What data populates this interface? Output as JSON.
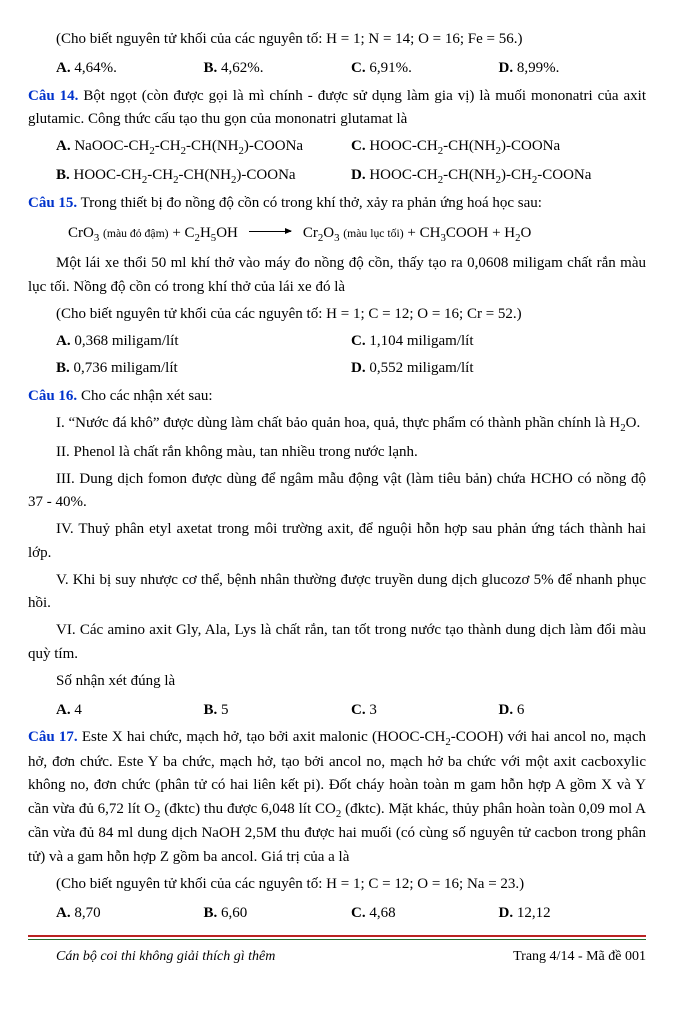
{
  "q13": {
    "note": "(Cho biết nguyên tử khối của các nguyên tố: H = 1; N = 14; O = 16; Fe = 56.)",
    "A": "4,64%.",
    "B": "4,62%.",
    "C": "6,91%.",
    "D": "8,99%."
  },
  "q14": {
    "label": "Câu 14.",
    "text": " Bột ngọt (còn được gọi là mì chính - được sử dụng làm gia vị) là muối mononatri của axit glutamic. Công thức cấu tạo thu gọn của mononatri glutamat là",
    "A": "NaOOC-CH₂-CH₂-CH(NH₂)-COONa",
    "B": "HOOC-CH₂-CH₂-CH(NH₂)-COONa",
    "C": "HOOC-CH₂-CH(NH₂)-COONa",
    "D": "HOOC-CH₂-CH(NH₂)-CH₂-COONa"
  },
  "q15": {
    "label": "Câu 15.",
    "text": " Trong thiết bị đo nồng độ cồn có trong khí thở, xảy ra phản ứng hoá học sau:",
    "eq_left": "CrO₃ ",
    "eq_left_note": "(màu đỏ đậm)",
    "eq_plus1": "  +  C₂H₅OH",
    "eq_right": "Cr₂O₃ ",
    "eq_right_note": "(màu lục tối)",
    "eq_plus2": "  +  CH₃COOH  +  H₂O",
    "body": "Một lái xe thổi 50 ml khí thở vào máy đo nồng độ cồn, thấy tạo ra 0,0608 miligam chất rắn màu lục tối. Nồng độ cồn có trong khí thở của lái xe đó là",
    "note": "(Cho biết nguyên tử khối của các nguyên tố: H = 1; C = 12; O = 16; Cr = 52.)",
    "A": "0,368 miligam/lít",
    "B": "0,736 miligam/lít",
    "C": "1,104 miligam/lít",
    "D": "0,552 miligam/lít"
  },
  "q16": {
    "label": "Câu 16.",
    "text": " Cho các nhận xét sau:",
    "I": "I. “Nước đá khô” được dùng làm chất bảo quản hoa, quả, thực phẩm có thành phần chính là H₂O.",
    "II": "II. Phenol là chất rắn không màu, tan nhiều trong nước lạnh.",
    "III": "III. Dung dịch fomon được dùng để ngâm mẫu động vật (làm tiêu bản) chứa HCHO có nồng độ 37 - 40%.",
    "IV": "IV. Thuỷ phân etyl axetat trong môi trường axit, để nguội hỗn hợp sau phản ứng tách thành hai lớp.",
    "V": "V. Khi bị suy nhược cơ thể, bệnh nhân thường được truyền dung dịch glucozơ 5% để nhanh phục hồi.",
    "VI": "VI. Các amino axit Gly, Ala, Lys là chất rắn, tan tốt trong nước tạo thành dung dịch làm đổi màu quỳ tím.",
    "ask": "Số nhận xét đúng là",
    "A": "4",
    "B": "5",
    "C": "3",
    "D": "6"
  },
  "q17": {
    "label": "Câu 17.",
    "text": " Este X hai chức, mạch hở, tạo bởi axit malonic (HOOC-CH₂-COOH) với hai ancol no, mạch hở, đơn chức. Este Y ba chức, mạch hở, tạo bởi ancol no, mạch hở ba chức với một axit cacboxylic không no, đơn chức (phân tử có hai liên kết pi). Đốt cháy hoàn toàn m gam hỗn hợp A gồm X và Y cần vừa đủ 6,72 lít O₂ (đktc) thu được 6,048 lít CO₂ (đktc). Mặt khác, thủy phân hoàn toàn 0,09 mol A cần vừa đủ 84 ml dung dịch NaOH 2,5M thu được hai muối (có cùng số nguyên tử cacbon trong phân tử) và a gam hỗn hợp Z gồm ba ancol. Giá trị của a là",
    "note": "(Cho biết nguyên tử khối của các nguyên tố: H = 1; C = 12; O = 16; Na = 23.)",
    "A": "8,70",
    "B": "6,60",
    "C": "4,68",
    "D": "12,12"
  },
  "footer": {
    "left": "Cán bộ coi thi không giải thích gì thêm",
    "right": "Trang 4/14 - Mã đề 001"
  }
}
